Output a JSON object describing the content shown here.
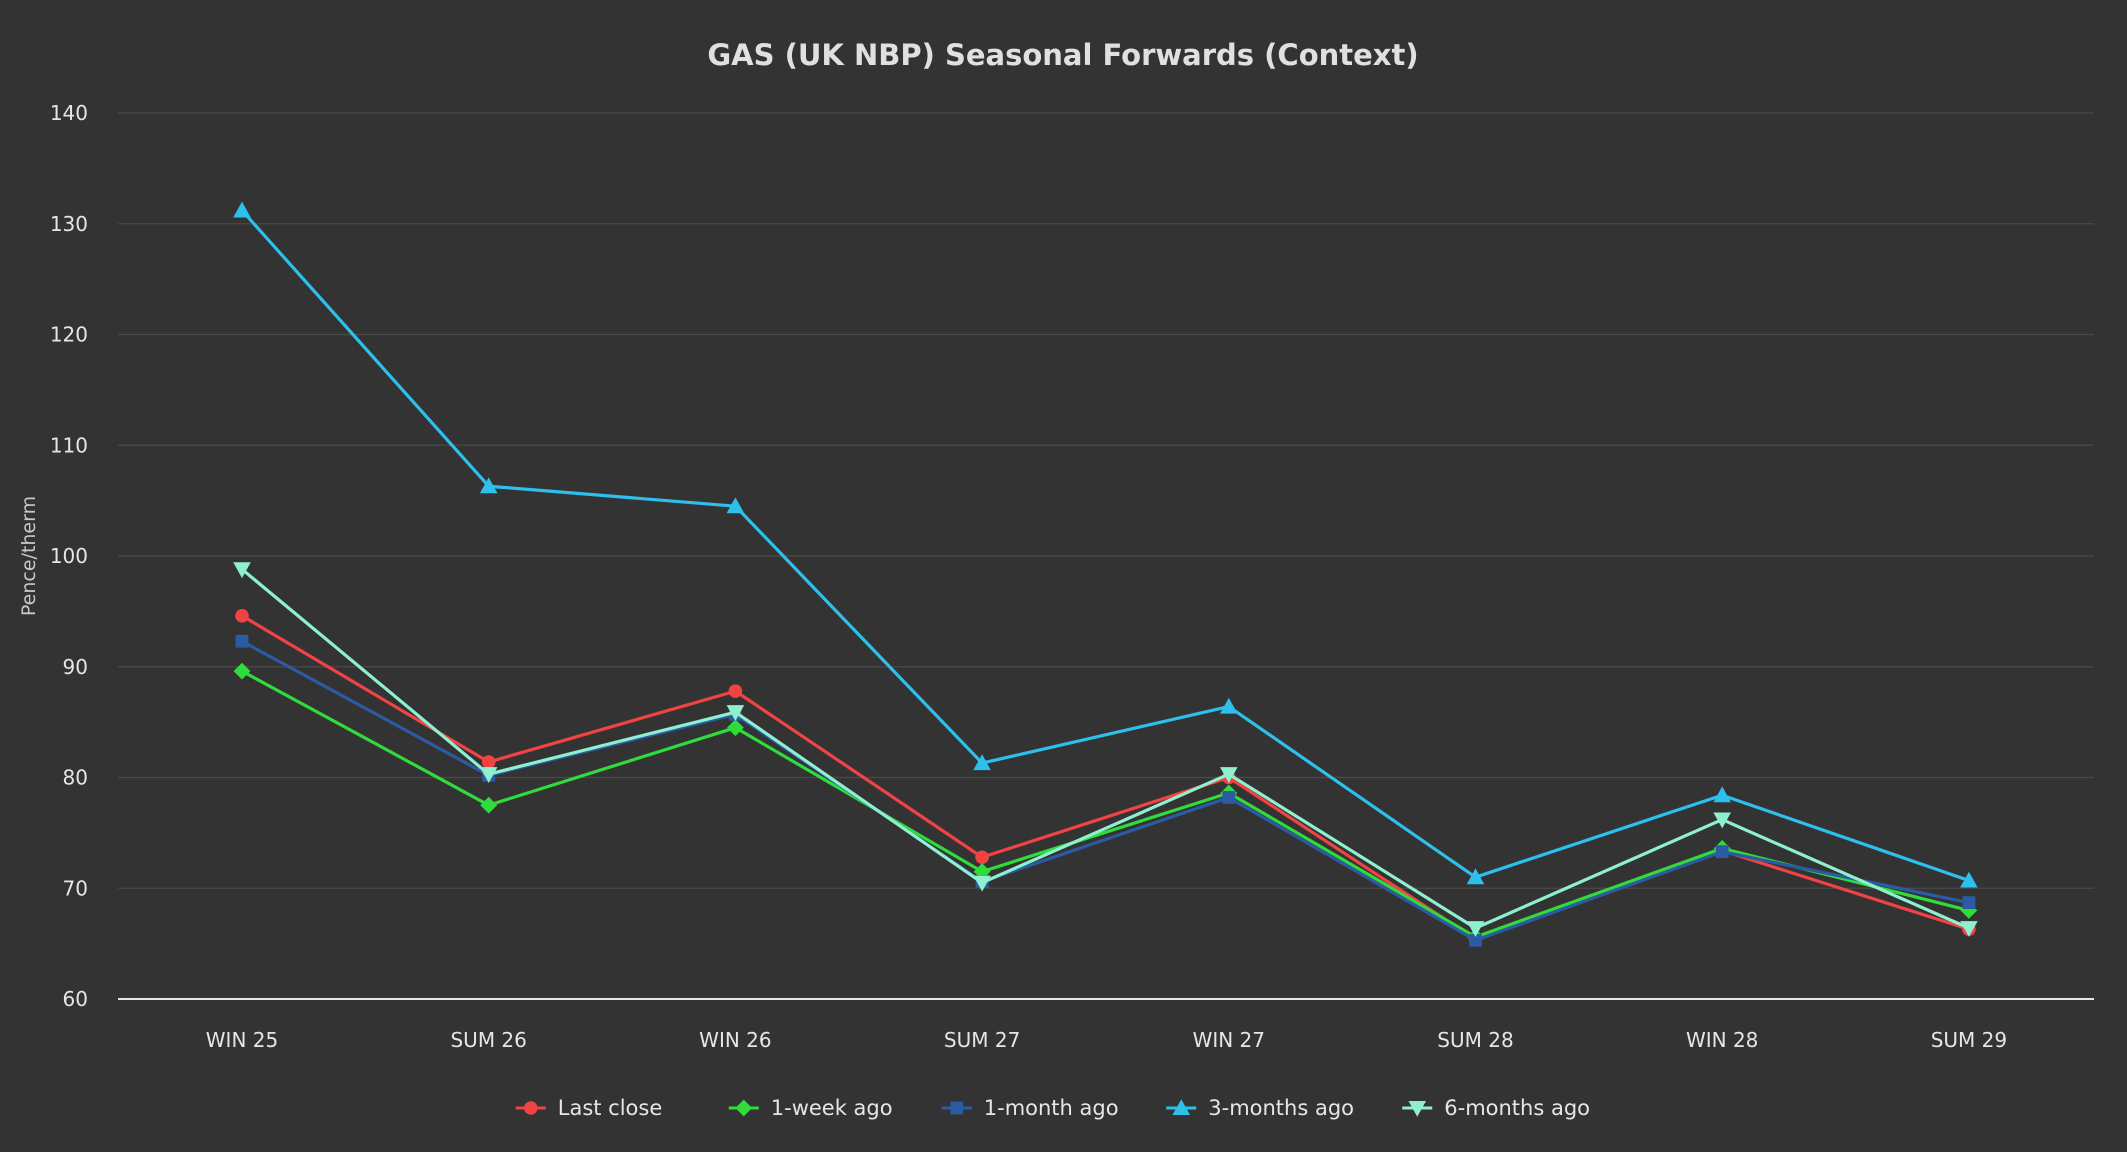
{
  "chart_data": {
    "type": "line",
    "title": "GAS (UK NBP) Seasonal Forwards (Context)",
    "xlabel": "",
    "ylabel": "Pence/therm",
    "categories": [
      "WIN 25",
      "SUM 26",
      "WIN 26",
      "SUM 27",
      "WIN 27",
      "SUM 28",
      "WIN 28",
      "SUM 29"
    ],
    "ylim": [
      60,
      140
    ],
    "yticks": [
      60,
      70,
      80,
      90,
      100,
      110,
      120,
      130,
      140
    ],
    "grid": true,
    "legend_position": "bottom-center",
    "series": [
      {
        "name": "Last close",
        "color": "#f04343",
        "marker": "circle",
        "values": [
          94.6,
          81.4,
          87.8,
          72.8,
          80.0,
          65.4,
          73.4,
          66.3
        ]
      },
      {
        "name": "1-week ago",
        "color": "#2fdc3c",
        "marker": "diamond",
        "values": [
          89.6,
          77.5,
          84.5,
          71.5,
          78.6,
          65.6,
          73.6,
          68.0
        ]
      },
      {
        "name": "1-month ago",
        "color": "#2a5ba3",
        "marker": "square",
        "values": [
          92.3,
          80.2,
          85.7,
          70.6,
          78.2,
          65.3,
          73.3,
          68.7
        ]
      },
      {
        "name": "3-months ago",
        "color": "#2ec0ec",
        "marker": "triangle-up",
        "values": [
          131.2,
          106.3,
          104.5,
          81.3,
          86.4,
          71.0,
          78.4,
          70.7
        ]
      },
      {
        "name": "6-months ago",
        "color": "#8ff0cf",
        "marker": "triangle-down",
        "values": [
          98.8,
          80.3,
          85.9,
          70.5,
          80.3,
          66.4,
          76.2,
          66.4
        ]
      }
    ]
  }
}
